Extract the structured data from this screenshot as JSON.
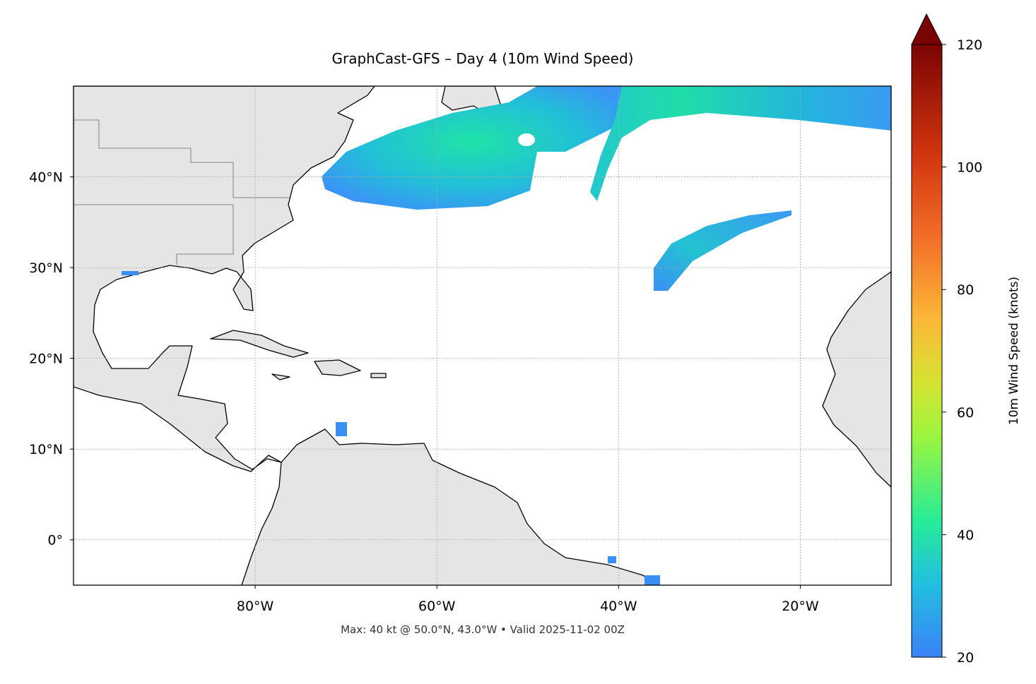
{
  "map": {
    "title": "GraphCast-GFS – Day 4 (10m Wind Speed)",
    "footnote": "Max: 40 kt @ 50.0°N, 43.0°W • Valid 2025-11-02 00Z",
    "xlim": [
      -100,
      -10
    ],
    "ylim": [
      -5,
      50
    ],
    "xticks": [
      {
        "value": -80,
        "label": "80°W"
      },
      {
        "value": -60,
        "label": "60°W"
      },
      {
        "value": -40,
        "label": "40°W"
      },
      {
        "value": -20,
        "label": "20°W"
      }
    ],
    "yticks": [
      {
        "value": 40,
        "label": "40°N"
      },
      {
        "value": 30,
        "label": "30°N"
      },
      {
        "value": 20,
        "label": "20°N"
      },
      {
        "value": 10,
        "label": "10°N"
      },
      {
        "value": 0,
        "label": "0°"
      }
    ],
    "grid": true
  },
  "colorbar": {
    "label": "10m Wind Speed (knots)",
    "lim": [
      20,
      120
    ],
    "ticks": [
      20,
      40,
      60,
      80,
      100,
      120
    ]
  }
}
